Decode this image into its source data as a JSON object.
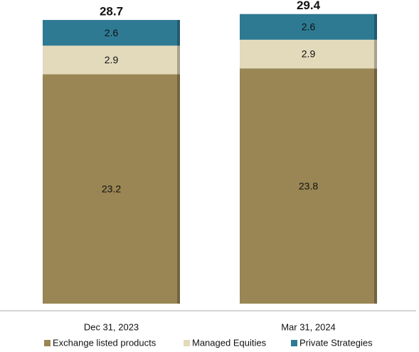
{
  "chart_data": {
    "type": "stacked_bar",
    "categories": [
      "Dec 31, 2023",
      "Mar 31, 2024"
    ],
    "series": [
      {
        "name": "Exchange listed products",
        "color": "#9a8654",
        "values": [
          23.2,
          23.8
        ]
      },
      {
        "name": "Managed Equities",
        "color": "#e3d9bb",
        "values": [
          2.9,
          2.9
        ]
      },
      {
        "name": "Private Strategies",
        "color": "#2e7a93",
        "values": [
          2.6,
          2.6
        ]
      }
    ],
    "totals": [
      28.7,
      29.4
    ],
    "ylim": [
      0,
      30
    ],
    "legend": "bottom"
  }
}
